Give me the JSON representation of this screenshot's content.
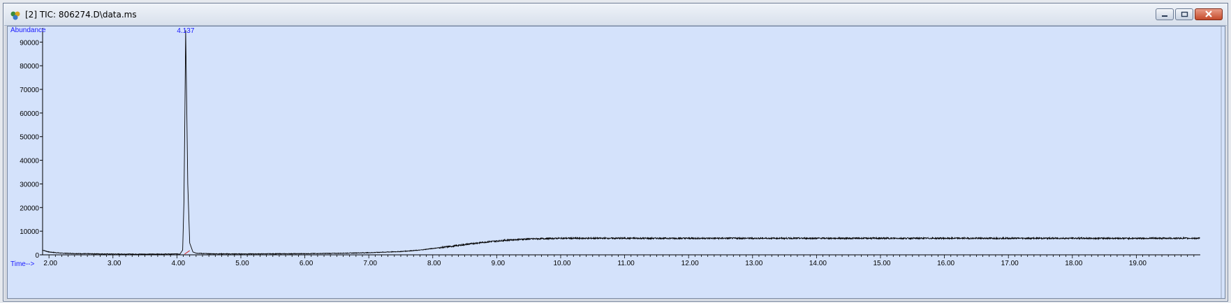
{
  "window": {
    "title": "[2] TIC: 806274.D\\data.ms",
    "buttons": [
      "minimize-icon",
      "restore-icon",
      "close-icon"
    ]
  },
  "chart_data": {
    "type": "line",
    "ylabel": "Abundance",
    "xlabel": "Time-->",
    "xlim": [
      1.9,
      20.0
    ],
    "ylim": [
      0,
      96000
    ],
    "x_ticks": [
      "2.00",
      "3.00",
      "4.00",
      "5.00",
      "6.00",
      "7.00",
      "8.00",
      "9.00",
      "10.00",
      "11.00",
      "12.00",
      "13.00",
      "14.00",
      "15.00",
      "16.00",
      "17.00",
      "18.00",
      "19.00"
    ],
    "y_ticks": [
      "0",
      "10000",
      "20000",
      "30000",
      "40000",
      "50000",
      "60000",
      "70000",
      "80000",
      "90000"
    ],
    "peak_label": "4.137",
    "series": [
      {
        "color": "#000000",
        "x": [
          1.9,
          2.0,
          2.2,
          2.5,
          3.0,
          3.5,
          3.9,
          4.05,
          4.09,
          4.11,
          4.125,
          4.137,
          4.15,
          4.17,
          4.2,
          4.25,
          4.3,
          4.5,
          5.0,
          6.0,
          6.5,
          7.0,
          7.5,
          7.8,
          8.0,
          8.3,
          8.6,
          8.9,
          9.2,
          9.5,
          9.8,
          10.0,
          10.5,
          11.0,
          12.0,
          13.0,
          14.0,
          15.0,
          16.0,
          17.0,
          18.0,
          19.0,
          20.0
        ],
        "y": [
          2000,
          1200,
          700,
          500,
          350,
          300,
          350,
          400,
          2000,
          22000,
          60000,
          95000,
          70000,
          30000,
          5000,
          1200,
          700,
          450,
          400,
          500,
          650,
          900,
          1400,
          2000,
          2700,
          3600,
          4700,
          5600,
          6300,
          6700,
          6900,
          7000,
          7000,
          7000,
          7000,
          7000,
          7000,
          7000,
          7000,
          7000,
          7000,
          7000,
          7000
        ]
      }
    ]
  }
}
